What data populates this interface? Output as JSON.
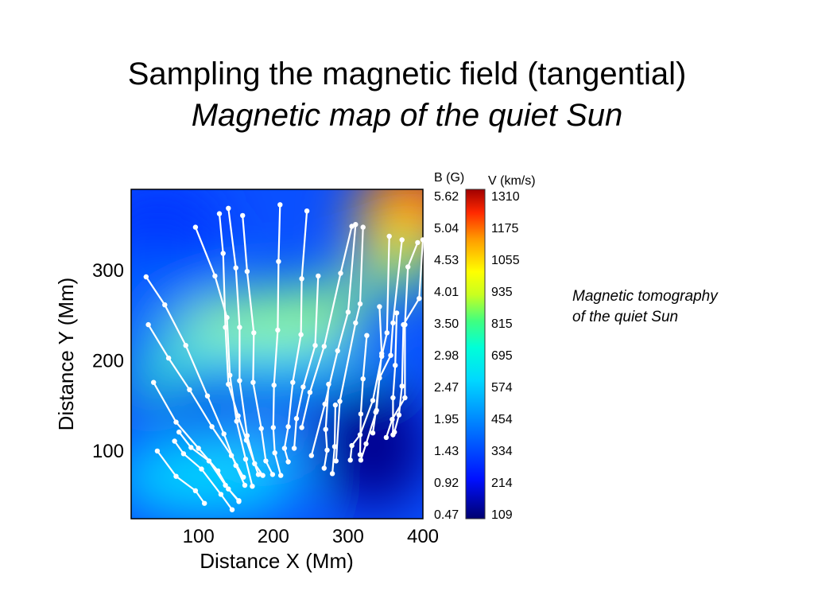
{
  "slide": {
    "title_line1": "Sampling the magnetic field (tangential)",
    "title_line2": "Magnetic map of the quiet Sun",
    "caption_line1": "Magnetic tomography",
    "caption_line2": "of the quiet Sun"
  },
  "colors": {
    "low": "#000080",
    "mid": "#00ffff",
    "high": "#ff0000",
    "trace": "#ffffff"
  },
  "chart_data": {
    "type": "heatmap",
    "title": "",
    "xlabel": "Distance X  (Mm)",
    "ylabel": "Distance Y  (Mm)",
    "xlim": [
      10,
      400
    ],
    "ylim": [
      25,
      390
    ],
    "x_ticks": [
      100,
      200,
      300,
      400
    ],
    "y_ticks": [
      100,
      200,
      300
    ],
    "grid": false,
    "colorbar": {
      "b_label": "B (G)",
      "v_label": "V (km/s)",
      "b_ticks": [
        "5.62",
        "5.04",
        "4.53",
        "4.01",
        "3.50",
        "2.98",
        "2.47",
        "1.95",
        "1.43",
        "0.92",
        "0.47"
      ],
      "v_ticks": [
        "1310",
        "1175",
        "1055",
        "935",
        "815",
        "695",
        "574",
        "454",
        "334",
        "214",
        "109"
      ]
    },
    "traces": [
      [
        [
          30,
          293
        ],
        [
          55,
          262
        ],
        [
          83,
          217
        ],
        [
          112,
          161
        ],
        [
          134,
          119
        ],
        [
          150,
          84
        ],
        [
          162,
          62
        ]
      ],
      [
        [
          33,
          240
        ],
        [
          60,
          203
        ],
        [
          88,
          168
        ],
        [
          118,
          127
        ],
        [
          144,
          95
        ],
        [
          160,
          71
        ]
      ],
      [
        [
          40,
          176
        ],
        [
          70,
          132
        ],
        [
          100,
          103
        ],
        [
          126,
          78
        ],
        [
          140,
          58
        ],
        [
          154,
          45
        ]
      ],
      [
        [
          45,
          100
        ],
        [
          70,
          72
        ],
        [
          96,
          56
        ],
        [
          108,
          42
        ]
      ],
      [
        [
          68,
          111
        ],
        [
          80,
          97
        ],
        [
          104,
          80
        ],
        [
          130,
          52
        ],
        [
          145,
          35
        ]
      ],
      [
        [
          74,
          121
        ],
        [
          90,
          104
        ],
        [
          114,
          89
        ],
        [
          136,
          62
        ],
        [
          154,
          44
        ]
      ],
      [
        [
          96,
          348
        ],
        [
          122,
          294
        ],
        [
          138,
          248
        ],
        [
          142,
          184
        ],
        [
          151,
          133
        ],
        [
          163,
          91
        ],
        [
          172,
          61
        ]
      ],
      [
        [
          128,
          363
        ],
        [
          133,
          319
        ],
        [
          136,
          237
        ],
        [
          140,
          174
        ],
        [
          153,
          139
        ],
        [
          164,
          112
        ],
        [
          180,
          74
        ]
      ],
      [
        [
          140,
          369
        ],
        [
          150,
          303
        ],
        [
          155,
          237
        ],
        [
          155,
          178
        ],
        [
          165,
          117
        ],
        [
          175,
          86
        ],
        [
          186,
          73
        ]
      ],
      [
        [
          159,
          361
        ],
        [
          165,
          299
        ],
        [
          174,
          231
        ],
        [
          173,
          176
        ],
        [
          184,
          125
        ],
        [
          190,
          89
        ],
        [
          199,
          74
        ]
      ],
      [
        [
          209,
          373
        ],
        [
          207,
          310
        ],
        [
          206,
          234
        ],
        [
          201,
          173
        ],
        [
          200,
          126
        ],
        [
          202,
          98
        ],
        [
          210,
          73
        ]
      ],
      [
        [
          245,
          366
        ],
        [
          238,
          291
        ],
        [
          237,
          229
        ],
        [
          226,
          176
        ],
        [
          220,
          127
        ],
        [
          215,
          103
        ],
        [
          220,
          88
        ]
      ],
      [
        [
          260,
          294
        ],
        [
          256,
          217
        ],
        [
          240,
          171
        ],
        [
          231,
          136
        ],
        [
          228,
          103
        ]
      ],
      [
        [
          305,
          349
        ],
        [
          290,
          297
        ],
        [
          268,
          216
        ],
        [
          249,
          165
        ],
        [
          238,
          126
        ]
      ],
      [
        [
          310,
          351
        ],
        [
          300,
          254
        ],
        [
          286,
          211
        ],
        [
          269,
          152
        ],
        [
          251,
          95
        ]
      ],
      [
        [
          320,
          348
        ],
        [
          316,
          263
        ],
        [
          310,
          242
        ],
        [
          289,
          155
        ],
        [
          284,
          89
        ]
      ],
      [
        [
          355,
          338
        ],
        [
          352,
          231
        ],
        [
          345,
          205
        ],
        [
          333,
          156
        ],
        [
          316,
          118
        ],
        [
          305,
          106
        ],
        [
          303,
          90
        ]
      ],
      [
        [
          372,
          334
        ],
        [
          360,
          242
        ],
        [
          357,
          206
        ],
        [
          342,
          181
        ],
        [
          338,
          145
        ],
        [
          324,
          108
        ],
        [
          317,
          90
        ]
      ],
      [
        [
          400,
          334
        ],
        [
          395,
          269
        ],
        [
          374,
          240
        ],
        [
          372,
          172
        ],
        [
          368,
          140
        ],
        [
          362,
          121
        ]
      ],
      [
        [
          393,
          331
        ],
        [
          380,
          304
        ],
        [
          376,
          240
        ],
        [
          376,
          159
        ],
        [
          359,
          135
        ],
        [
          351,
          115
        ]
      ],
      [
        [
          274,
          174
        ],
        [
          270,
          124
        ],
        [
          272,
          101
        ],
        [
          268,
          81
        ]
      ],
      [
        [
          283,
          151
        ],
        [
          282,
          105
        ],
        [
          279,
          75
        ]
      ],
      [
        [
          325,
          228
        ],
        [
          320,
          180
        ],
        [
          317,
          141
        ],
        [
          316,
          96
        ]
      ],
      [
        [
          342,
          260
        ],
        [
          345,
          208
        ],
        [
          337,
          143
        ],
        [
          333,
          120
        ]
      ],
      [
        [
          365,
          253
        ],
        [
          363,
          195
        ],
        [
          360,
          159
        ],
        [
          360,
          118
        ]
      ]
    ]
  }
}
